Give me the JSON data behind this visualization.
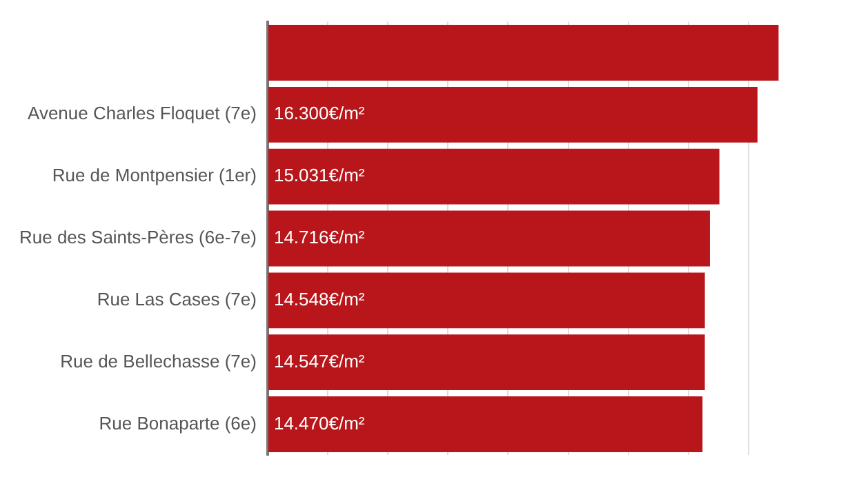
{
  "chart_data": {
    "type": "bar",
    "orientation": "horizontal",
    "categories": [
      null,
      "Avenue Charles Floquet (7e)",
      "Rue de Montpensier (1er)",
      "Rue des Saints-Pères (6e-7e)",
      "Rue Las Cases (7e)",
      "Rue de Bellechasse (7e)",
      "Rue Bonaparte (6e)"
    ],
    "values": [
      17000,
      16300,
      15031,
      14716,
      14548,
      14547,
      14470
    ],
    "value_labels": [
      null,
      "16.300€/m²",
      "15.031€/m²",
      "14.716€/m²",
      "14.548€/m²",
      "14.547€/m²",
      "14.470€/m²"
    ],
    "color": "#b8161a",
    "xticks": [
      {
        "value": 0,
        "label": null
      },
      {
        "value": 2000,
        "label": null
      },
      {
        "value": 4000,
        "label": null
      },
      {
        "value": 6000,
        "label": null
      },
      {
        "value": 8000,
        "label": null
      },
      {
        "value": 10000,
        "label": null
      },
      {
        "value": 12000,
        "label": null
      },
      {
        "value": 14000,
        "label": null
      },
      {
        "value": 16000,
        "label": null
      }
    ],
    "grid": "x",
    "legend": false,
    "tick_labels": "y"
  }
}
